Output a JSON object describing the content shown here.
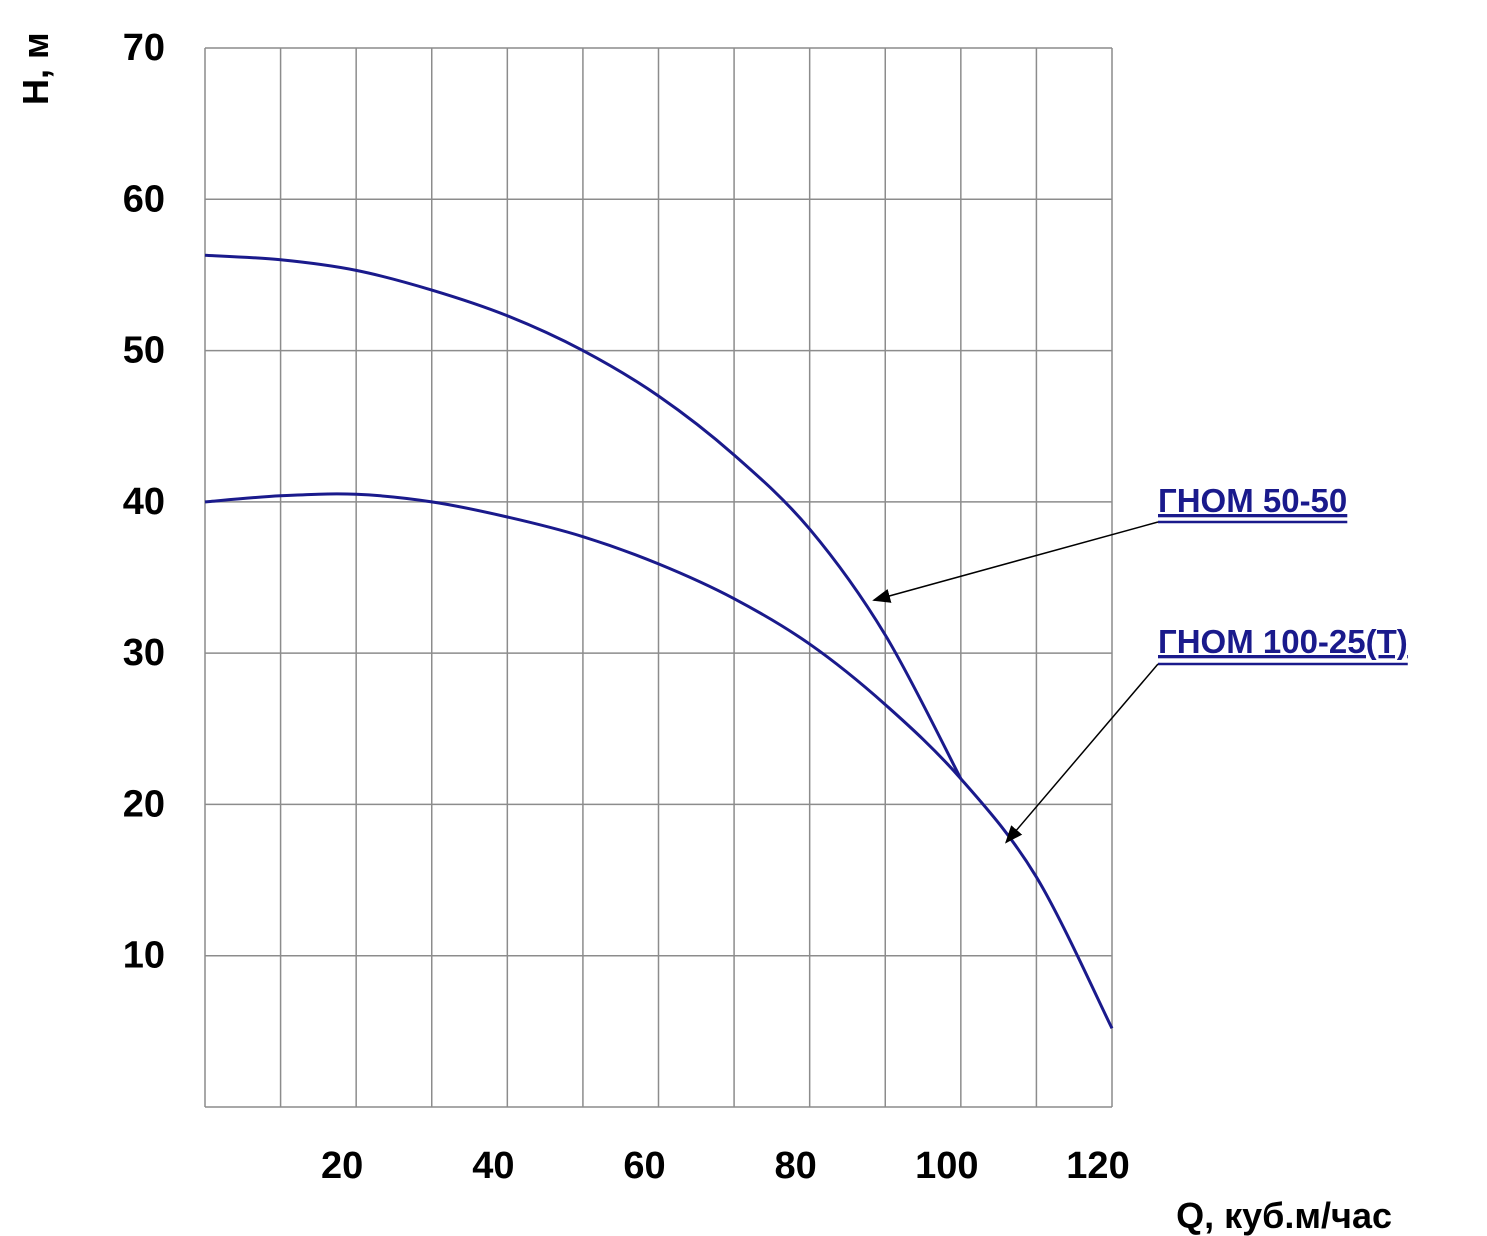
{
  "chart_data": {
    "type": "line",
    "xlabel": "Q, куб.м/час",
    "ylabel": "H, м",
    "xlim": [
      0,
      120
    ],
    "ylim": [
      0,
      70
    ],
    "x_ticks": [
      "20",
      "40",
      "60",
      "80",
      "100",
      "120"
    ],
    "y_ticks": [
      "10",
      "20",
      "30",
      "40",
      "50",
      "60",
      "70"
    ],
    "grid": true,
    "line_color": "#1a1a8c",
    "series": [
      {
        "name": "ГНОМ 50-50",
        "x": [
          0,
          10,
          20,
          30,
          40,
          50,
          60,
          70,
          80,
          90,
          100
        ],
        "y": [
          56.3,
          56,
          55.3,
          54,
          52.3,
          50,
          47,
          43.1,
          38.2,
          31.2,
          21.7
        ]
      },
      {
        "name": "ГНОМ 100-25(Т)",
        "x": [
          0,
          10,
          20,
          30,
          40,
          50,
          60,
          70,
          80,
          90,
          100,
          110,
          120
        ],
        "y": [
          40,
          40.4,
          40.5,
          40,
          39,
          37.7,
          35.9,
          33.6,
          30.6,
          26.6,
          21.7,
          15.2,
          5.2
        ]
      }
    ]
  }
}
